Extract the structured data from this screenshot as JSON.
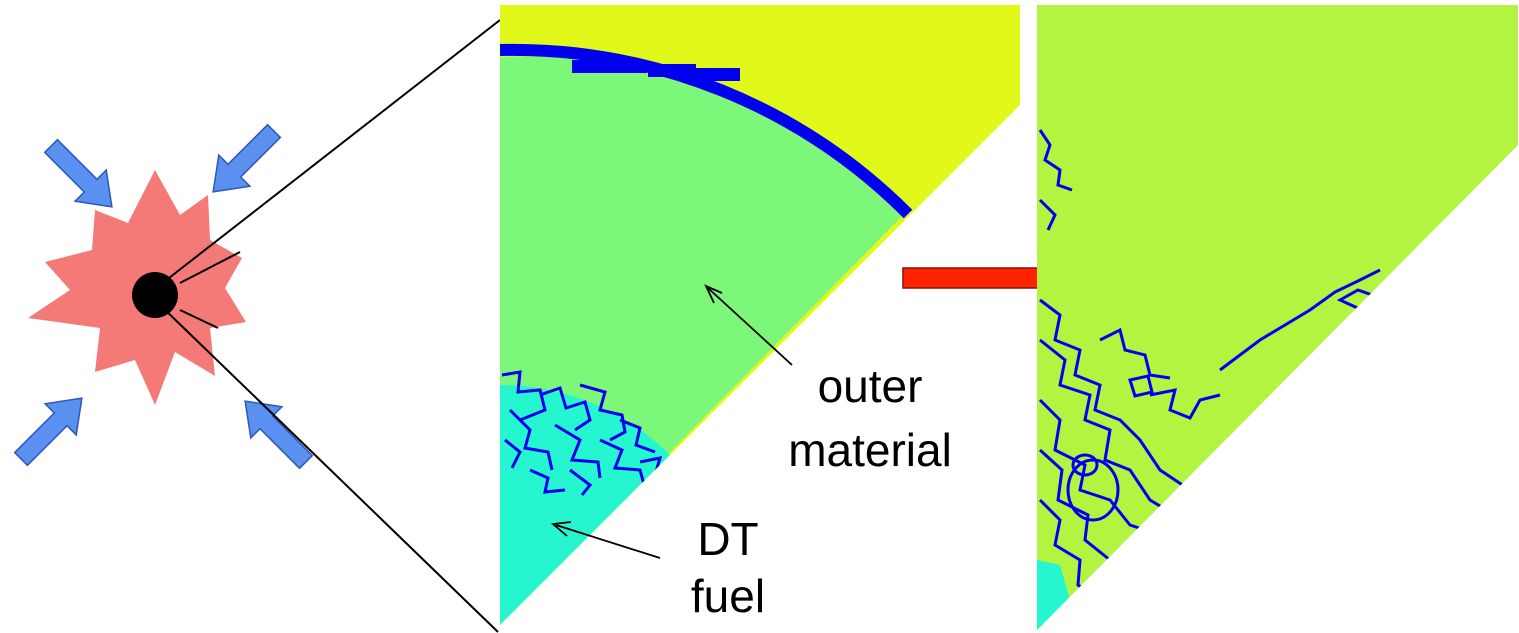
{
  "labels": {
    "outer_line1": "outer",
    "outer_line2": "material",
    "fuel_line1": "DT",
    "fuel_line2": "fuel"
  },
  "colors": {
    "laser_arrow": "#5b8ff0",
    "capsule_blob": "#f47a78",
    "fuel_core": "#000000",
    "outer_region_initial": "#7cf77a",
    "outer_region_later": "#b3f441",
    "ablator_region": "#e1f91a",
    "fuel_region": "#26f6d0",
    "interface": "#0000ee",
    "time_arrow": "#ff2200"
  },
  "icons": {
    "laser_arrows": "beam-arrow-icon",
    "time_arrow": "right-arrow-icon"
  }
}
